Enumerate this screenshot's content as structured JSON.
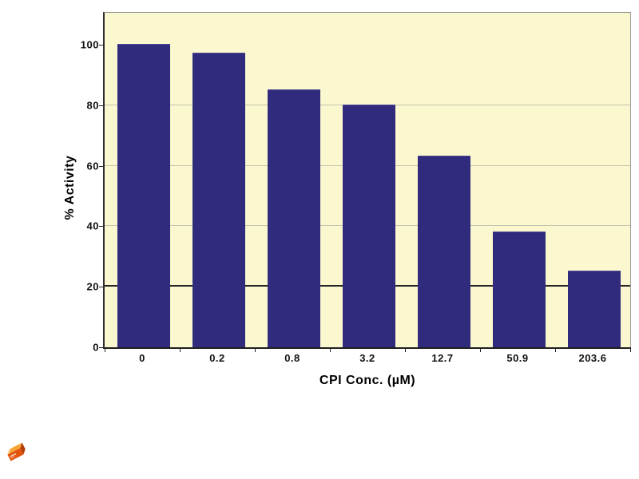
{
  "chart_data": {
    "type": "bar",
    "title": "",
    "xlabel": "CPI Conc. (µM)",
    "ylabel": "% Activity",
    "categories": [
      "0",
      "0.2",
      "0.8",
      "3.2",
      "12.7",
      "50.9",
      "203.6"
    ],
    "values": [
      100,
      97,
      85,
      80,
      63,
      38,
      25
    ],
    "yticks": [
      0,
      20,
      40,
      60,
      80,
      100
    ],
    "ylim": [
      0,
      110
    ],
    "grid": "horizontal, line at 20 drawn dark, lines at 40/60/80 light, none at 100",
    "legend": "none",
    "colors": {
      "bar": "#302b7c",
      "plot_background": "#fbf8cf",
      "gridline_light": "#c6c3ae",
      "gridline_dark": "#262626",
      "axis": "#1f1f1f",
      "outer_border": "#8e8e8e",
      "page_background": "#ffffff",
      "text": "#111111"
    }
  },
  "decoration": {
    "brick_icon": {
      "label": "orange-brick-icon",
      "colors": {
        "top": "#f7a437",
        "front": "#e2540e",
        "side": "#b03c08",
        "highlight": "#ffd9a0"
      }
    }
  }
}
